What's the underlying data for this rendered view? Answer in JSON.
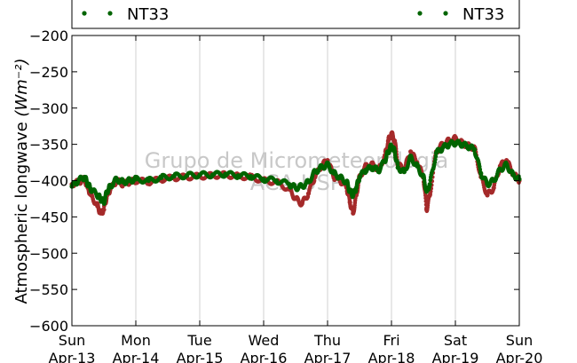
{
  "chart_data": {
    "type": "scatter",
    "title": "",
    "xlabel": "",
    "ylabel": "Atmospheric longwave",
    "ylabel_units": "(Wm⁻²)",
    "ylim": [
      -600,
      -200
    ],
    "yticks": [
      -200,
      -250,
      -300,
      -350,
      -400,
      -450,
      -500,
      -550,
      -600
    ],
    "ytick_labels": [
      "−200",
      "−250",
      "−300",
      "−350",
      "−400",
      "−450",
      "−500",
      "−550",
      "−600"
    ],
    "xlim": [
      0,
      7
    ],
    "xticks": [
      {
        "x": 0,
        "day": "Sun",
        "date": "Apr-13"
      },
      {
        "x": 1,
        "day": "Mon",
        "date": "Apr-14"
      },
      {
        "x": 2,
        "day": "Tue",
        "date": "Apr-15"
      },
      {
        "x": 3,
        "day": "Wed",
        "date": "Apr-16"
      },
      {
        "x": 4,
        "day": "Thu",
        "date": "Apr-17"
      },
      {
        "x": 5,
        "day": "Fri",
        "date": "Apr-18"
      },
      {
        "x": 6,
        "day": "Sat",
        "date": "Apr-19"
      },
      {
        "x": 7,
        "day": "Sun",
        "date": "Apr-20"
      }
    ],
    "grid": "vertical",
    "legend": {
      "placement": "top",
      "entries": [
        "NT33",
        "NT33"
      ]
    },
    "series": [
      {
        "name": "NT33",
        "color": "#a52a2a",
        "x": [
          0,
          0.1,
          0.2,
          0.25,
          0.3,
          0.4,
          0.45,
          0.5,
          0.55,
          0.6,
          0.7,
          0.8,
          0.9,
          1.0,
          1.2,
          1.4,
          1.6,
          1.8,
          2.0,
          2.2,
          2.4,
          2.6,
          2.8,
          3.0,
          3.2,
          3.4,
          3.5,
          3.6,
          3.7,
          3.8,
          3.9,
          4.0,
          4.1,
          4.2,
          4.3,
          4.35,
          4.4,
          4.45,
          4.5,
          4.6,
          4.7,
          4.8,
          4.9,
          4.95,
          5.0,
          5.05,
          5.1,
          5.2,
          5.3,
          5.4,
          5.5,
          5.55,
          5.6,
          5.7,
          5.8,
          5.9,
          6.0,
          6.1,
          6.2,
          6.3,
          6.4,
          6.5,
          6.6,
          6.7,
          6.8,
          6.9,
          7.0
        ],
        "y": [
          -405,
          -402,
          -398,
          -410,
          -420,
          -435,
          -445,
          -440,
          -420,
          -412,
          -400,
          -405,
          -402,
          -400,
          -402,
          -398,
          -396,
          -395,
          -394,
          -393,
          -392,
          -394,
          -395,
          -400,
          -402,
          -412,
          -425,
          -432,
          -418,
          -395,
          -380,
          -372,
          -395,
          -400,
          -410,
          -430,
          -445,
          -420,
          -395,
          -380,
          -378,
          -385,
          -365,
          -345,
          -335,
          -345,
          -378,
          -385,
          -360,
          -375,
          -395,
          -440,
          -420,
          -360,
          -350,
          -345,
          -342,
          -348,
          -352,
          -355,
          -395,
          -420,
          -410,
          -380,
          -372,
          -390,
          -400
        ]
      },
      {
        "name": "NT33",
        "color": "#006400",
        "x": [
          0,
          0.1,
          0.2,
          0.25,
          0.3,
          0.4,
          0.45,
          0.5,
          0.55,
          0.6,
          0.7,
          0.8,
          0.9,
          1.0,
          1.2,
          1.4,
          1.6,
          1.8,
          2.0,
          2.2,
          2.4,
          2.6,
          2.8,
          3.0,
          3.2,
          3.4,
          3.5,
          3.6,
          3.7,
          3.8,
          3.9,
          4.0,
          4.1,
          4.2,
          4.3,
          4.35,
          4.4,
          4.45,
          4.5,
          4.6,
          4.7,
          4.8,
          4.9,
          4.95,
          5.0,
          5.05,
          5.1,
          5.2,
          5.3,
          5.4,
          5.5,
          5.55,
          5.6,
          5.7,
          5.8,
          5.9,
          6.0,
          6.1,
          6.2,
          6.3,
          6.4,
          6.5,
          6.6,
          6.7,
          6.8,
          6.9,
          7.0
        ],
        "y": [
          -408,
          -400,
          -395,
          -405,
          -412,
          -420,
          -425,
          -430,
          -415,
          -408,
          -398,
          -402,
          -400,
          -398,
          -400,
          -396,
          -394,
          -393,
          -392,
          -392,
          -391,
          -393,
          -394,
          -398,
          -400,
          -405,
          -410,
          -408,
          -402,
          -388,
          -382,
          -378,
          -390,
          -396,
          -402,
          -415,
          -420,
          -410,
          -395,
          -385,
          -382,
          -386,
          -372,
          -360,
          -352,
          -360,
          -382,
          -388,
          -368,
          -380,
          -395,
          -415,
          -405,
          -362,
          -355,
          -350,
          -348,
          -350,
          -353,
          -357,
          -390,
          -405,
          -400,
          -385,
          -378,
          -392,
          -398
        ]
      }
    ]
  },
  "watermark": {
    "line1": "Grupo de Micrometeorologia",
    "line2": "ACA-USP"
  }
}
